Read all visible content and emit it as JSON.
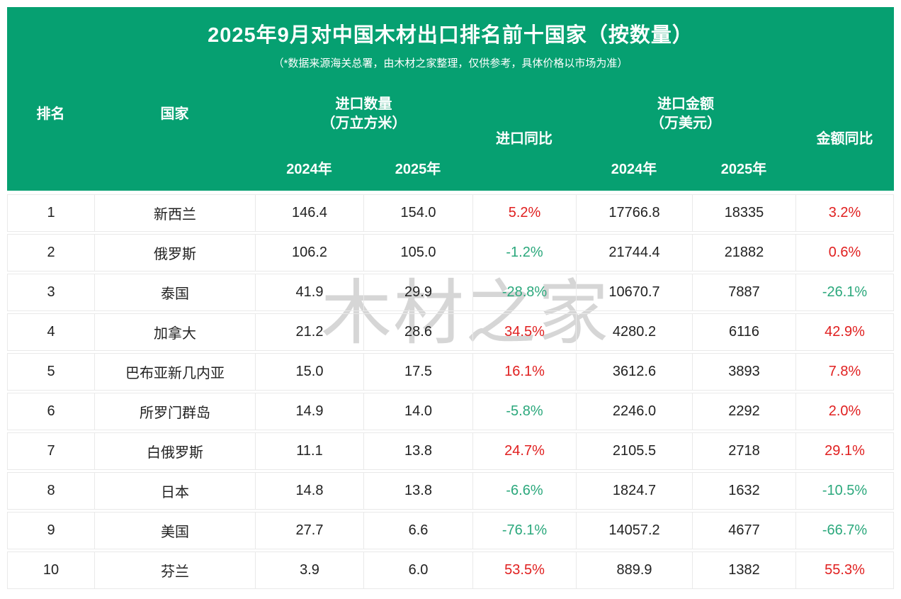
{
  "colors": {
    "header_green": "#06a071",
    "up_red": "#e01f1f",
    "down_green": "#2ba87c",
    "text_dark": "#222222",
    "border_gray": "#e9e9e9",
    "watermark_gray": "#d6d6d6"
  },
  "header": {
    "subtitle": "（*数据来源海关总署，由木材之家整理，仅供参考，具体价格以市场为准）"
  },
  "columns": {
    "rank": "排名",
    "country": "国家",
    "qty_group_line1": "进口数量",
    "qty_group_line2": "（万立方米）",
    "qty_yoy": "进口同比",
    "amt_group_line1": "进口金额",
    "amt_group_line2": "（万美元）",
    "amt_yoy": "金额同比",
    "year_2024": "2024年",
    "year_2025": "2025年"
  },
  "watermark": "木材之家",
  "chart_data": {
    "type": "table",
    "title": "2025年9月对中国木材出口排名前十国家（按数量）",
    "columns": [
      "排名",
      "国家",
      "进口数量2024年（万立方米）",
      "进口数量2025年（万立方米）",
      "进口同比",
      "进口金额2024年（万美元）",
      "进口金额2025年（万美元）",
      "金额同比"
    ],
    "rows": [
      {
        "rank": "1",
        "country": "新西兰",
        "qty_2024": "146.4",
        "qty_2025": "154.0",
        "qty_yoy": "5.2%",
        "amt_2024": "17766.8",
        "amt_2025": "18335",
        "amt_yoy": "3.2%"
      },
      {
        "rank": "2",
        "country": "俄罗斯",
        "qty_2024": "106.2",
        "qty_2025": "105.0",
        "qty_yoy": "-1.2%",
        "amt_2024": "21744.4",
        "amt_2025": "21882",
        "amt_yoy": "0.6%"
      },
      {
        "rank": "3",
        "country": "泰国",
        "qty_2024": "41.9",
        "qty_2025": "29.9",
        "qty_yoy": "-28.8%",
        "amt_2024": "10670.7",
        "amt_2025": "7887",
        "amt_yoy": "-26.1%"
      },
      {
        "rank": "4",
        "country": "加拿大",
        "qty_2024": "21.2",
        "qty_2025": "28.6",
        "qty_yoy": "34.5%",
        "amt_2024": "4280.2",
        "amt_2025": "6116",
        "amt_yoy": "42.9%"
      },
      {
        "rank": "5",
        "country": "巴布亚新几内亚",
        "qty_2024": "15.0",
        "qty_2025": "17.5",
        "qty_yoy": "16.1%",
        "amt_2024": "3612.6",
        "amt_2025": "3893",
        "amt_yoy": "7.8%"
      },
      {
        "rank": "6",
        "country": "所罗门群岛",
        "qty_2024": "14.9",
        "qty_2025": "14.0",
        "qty_yoy": "-5.8%",
        "amt_2024": "2246.0",
        "amt_2025": "2292",
        "amt_yoy": "2.0%"
      },
      {
        "rank": "7",
        "country": "白俄罗斯",
        "qty_2024": "11.1",
        "qty_2025": "13.8",
        "qty_yoy": "24.7%",
        "amt_2024": "2105.5",
        "amt_2025": "2718",
        "amt_yoy": "29.1%"
      },
      {
        "rank": "8",
        "country": "日本",
        "qty_2024": "14.8",
        "qty_2025": "13.8",
        "qty_yoy": "-6.6%",
        "amt_2024": "1824.7",
        "amt_2025": "1632",
        "amt_yoy": "-10.5%"
      },
      {
        "rank": "9",
        "country": "美国",
        "qty_2024": "27.7",
        "qty_2025": "6.6",
        "qty_yoy": "-76.1%",
        "amt_2024": "14057.2",
        "amt_2025": "4677",
        "amt_yoy": "-66.7%"
      },
      {
        "rank": "10",
        "country": "芬兰",
        "qty_2024": "3.9",
        "qty_2025": "6.0",
        "qty_yoy": "53.5%",
        "amt_2024": "889.9",
        "amt_2025": "1382",
        "amt_yoy": "55.3%"
      }
    ]
  }
}
